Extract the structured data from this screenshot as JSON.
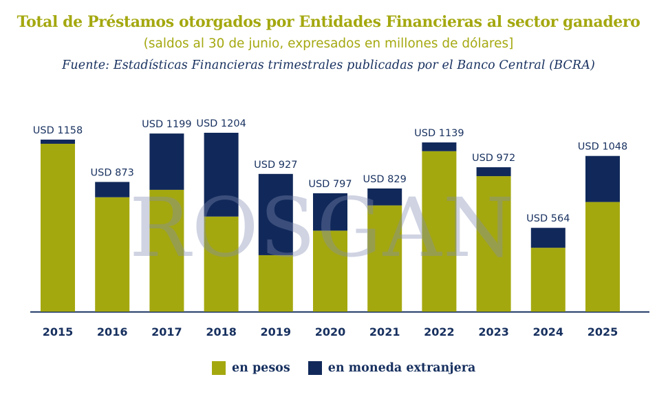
{
  "header": {
    "title": "Total de Préstamos otorgados por Entidades Financieras al sector ganadero",
    "subtitle": "(saldos al 30 de junio, expresados en millones de dólares]",
    "source": "Fuente: Estadísticas Financieras trimestrales publicadas por el Banco Central (BCRA)"
  },
  "watermark": {
    "text": "ROSGAN"
  },
  "colors": {
    "pesos": "#a4a80f",
    "extranjera": "#11295a",
    "axis": "#17305f",
    "label": "#17305f"
  },
  "legend": {
    "items": [
      {
        "label": "en pesos",
        "color": "#a4a80f"
      },
      {
        "label": "en moneda extranjera",
        "color": "#11295a"
      }
    ]
  },
  "chart_data": {
    "type": "bar",
    "stacked": true,
    "categories": [
      "2015",
      "2016",
      "2017",
      "2018",
      "2019",
      "2020",
      "2021",
      "2022",
      "2023",
      "2024",
      "2025"
    ],
    "series": [
      {
        "name": "en pesos",
        "values": [
          1130,
          770,
          820,
          640,
          380,
          545,
          715,
          1080,
          912,
          430,
          738
        ]
      },
      {
        "name": "en moneda extranjera",
        "values": [
          28,
          103,
          379,
          564,
          547,
          252,
          114,
          59,
          60,
          134,
          310
        ]
      }
    ],
    "totals": [
      1158,
      873,
      1199,
      1204,
      927,
      797,
      829,
      1139,
      972,
      564,
      1048
    ],
    "total_labels": [
      "USD 1158",
      "USD 873",
      "USD 1199",
      "USD 1204",
      "USD 927",
      "USD 797",
      "USD 829",
      "USD 1139",
      "USD 972",
      "USD 564",
      "USD 1048"
    ],
    "ylim": [
      0,
      1204
    ],
    "grid": false,
    "legend_position": "bottom-center"
  }
}
